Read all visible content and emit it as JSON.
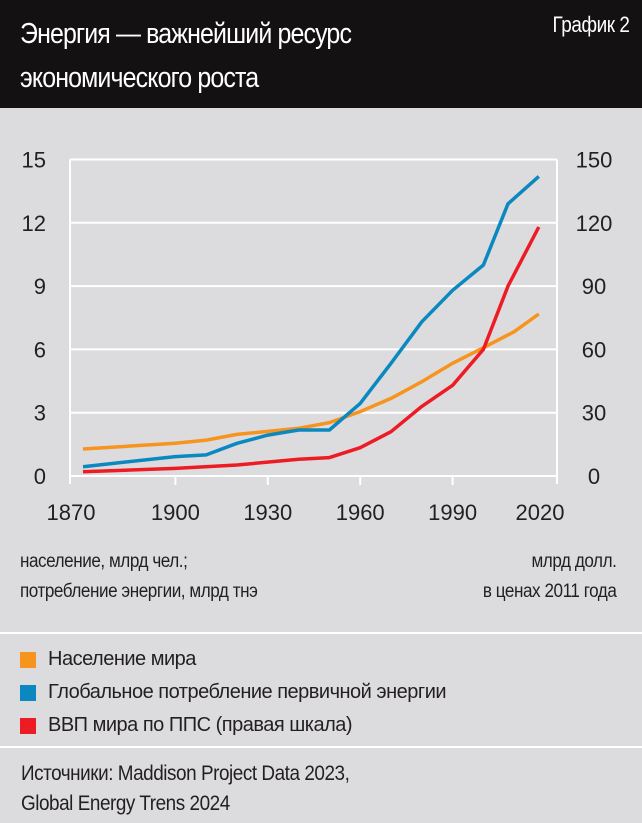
{
  "header": {
    "title_line1": "Энергия — важнейший ресурс",
    "title_line2": "экономического роста",
    "tag": "График 2"
  },
  "axis_labels": {
    "left_line1": "население, млрд чел.;",
    "left_line2": "потребление энергии, млрд тнэ",
    "right_line1": "млрд долл.",
    "right_line2": "в ценах 2011 года"
  },
  "legend": [
    {
      "label": "Население мира",
      "color": "#f7941d"
    },
    {
      "label": "Глобальное потребление первичной энергии",
      "color": "#0b88bf"
    },
    {
      "label": "ВВП мира по ППС (правая шкала)",
      "color": "#ed1c24"
    }
  ],
  "source": {
    "line1": "Источники: Maddison Project Data 2023,",
    "line2": "Global Energy Trens 2024"
  },
  "chart_data": {
    "type": "line",
    "title": "Энергия — важнейший ресурс экономического роста",
    "x_ticks": [
      "1870",
      "1900",
      "1930",
      "1960",
      "1990",
      "2020"
    ],
    "y_left_ticks": [
      "0",
      "3",
      "6",
      "9",
      "12",
      "15"
    ],
    "y_right_ticks": [
      "0",
      "30",
      "60",
      "90",
      "120",
      "150"
    ],
    "xlim": [
      1870,
      2020
    ],
    "ylim_left": [
      0,
      15
    ],
    "ylim_right": [
      0,
      150
    ],
    "grid": "horizontal",
    "legend_placement": "bottom",
    "series": [
      {
        "name": "Население мира",
        "axis": "left",
        "color": "#f7941d",
        "x": [
          1870,
          1900,
          1910,
          1920,
          1940,
          1950,
          1960,
          1970,
          1980,
          1990,
          2000,
          2010,
          2018
        ],
        "y": [
          1.28,
          1.55,
          1.7,
          1.97,
          2.26,
          2.53,
          3.05,
          3.68,
          4.47,
          5.34,
          6.08,
          6.84,
          7.68
        ]
      },
      {
        "name": "Глобальное потребление первичной энергии",
        "axis": "left",
        "color": "#0b88bf",
        "x": [
          1870,
          1900,
          1910,
          1920,
          1930,
          1940,
          1950,
          1960,
          1970,
          1980,
          1990,
          2000,
          2008,
          2018
        ],
        "y": [
          0.44,
          0.92,
          1.0,
          1.55,
          1.94,
          2.18,
          2.18,
          3.44,
          5.34,
          7.31,
          8.8,
          10.0,
          12.9,
          14.2
        ]
      },
      {
        "name": "ВВП мира по ППС (правая шкала)",
        "axis": "right",
        "color": "#ed1c24",
        "x": [
          1870,
          1900,
          1920,
          1940,
          1950,
          1960,
          1970,
          1980,
          1990,
          2000,
          2008,
          2018
        ],
        "y": [
          2,
          3.6,
          5.2,
          7.9,
          8.7,
          13.4,
          21,
          33,
          43,
          60,
          90,
          118
        ]
      }
    ]
  }
}
